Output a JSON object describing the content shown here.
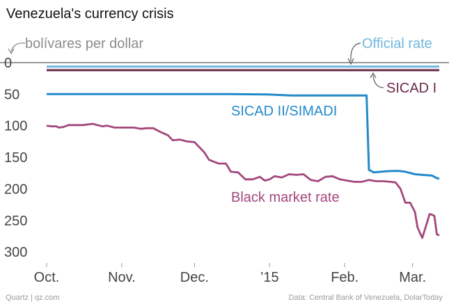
{
  "header": {
    "title": "Venezuela's currency crisis",
    "source_left": "Quartz | qz.com",
    "source_right": "Data: Central Bank of Venezuela, DolarToday"
  },
  "chart_data": {
    "type": "line",
    "title": "Venezuela's currency crisis",
    "ylabel": "bolívares per dollar",
    "y_inverted": true,
    "ylim": [
      0,
      300
    ],
    "yticks": [
      0,
      50,
      100,
      150,
      200,
      250,
      300
    ],
    "x_date_range": [
      "2014-10-01",
      "2015-03-12"
    ],
    "xticks": [
      {
        "label": "Oct.",
        "date": "2014-10-01"
      },
      {
        "label": "Nov.",
        "date": "2014-11-01"
      },
      {
        "label": "Dec.",
        "date": "2014-12-01"
      },
      {
        "label": "’15",
        "date": "2015-01-01"
      },
      {
        "label": "Feb.",
        "date": "2015-02-01"
      },
      {
        "label": "Mar.",
        "date": "2015-03-01"
      }
    ],
    "colors": {
      "official": "#6fb6dd",
      "sicad1": "#6b2a4a",
      "sicad2": "#2389c9",
      "black": "#a3477c",
      "axis_text": "#444444",
      "annotation_gray": "#8c8c8c"
    },
    "series": [
      {
        "name": "Official rate",
        "points": [
          [
            "2014-10-01",
            6.3
          ],
          [
            "2015-03-12",
            6.3
          ]
        ]
      },
      {
        "name": "SICAD I",
        "points": [
          [
            "2014-10-01",
            12
          ],
          [
            "2015-03-12",
            12
          ]
        ]
      },
      {
        "name": "SICAD II/SIMADI",
        "points": [
          [
            "2014-10-01",
            50
          ],
          [
            "2014-12-15",
            50
          ],
          [
            "2014-12-31",
            50.5
          ],
          [
            "2015-01-10",
            52
          ],
          [
            "2015-02-10",
            52
          ],
          [
            "2015-02-11",
            170
          ],
          [
            "2015-02-13",
            174
          ],
          [
            "2015-02-16",
            173
          ],
          [
            "2015-02-19",
            172
          ],
          [
            "2015-02-23",
            171.5
          ],
          [
            "2015-02-26",
            173
          ],
          [
            "2015-03-02",
            177
          ],
          [
            "2015-03-05",
            178
          ],
          [
            "2015-03-09",
            179
          ],
          [
            "2015-03-11",
            183
          ],
          [
            "2015-03-12",
            184
          ]
        ]
      },
      {
        "name": "Black market rate",
        "points": [
          [
            "2014-10-01",
            100
          ],
          [
            "2014-10-03",
            101
          ],
          [
            "2014-10-05",
            101
          ],
          [
            "2014-10-06",
            103
          ],
          [
            "2014-10-08",
            102
          ],
          [
            "2014-10-10",
            99
          ],
          [
            "2014-10-13",
            99
          ],
          [
            "2014-10-16",
            99
          ],
          [
            "2014-10-18",
            98
          ],
          [
            "2014-10-20",
            97
          ],
          [
            "2014-10-22",
            99
          ],
          [
            "2014-10-24",
            101
          ],
          [
            "2014-10-26",
            100
          ],
          [
            "2014-10-29",
            103
          ],
          [
            "2014-10-31",
            103
          ],
          [
            "2014-11-03",
            103
          ],
          [
            "2014-11-06",
            103
          ],
          [
            "2014-11-09",
            105
          ],
          [
            "2014-11-11",
            104
          ],
          [
            "2014-11-14",
            104
          ],
          [
            "2014-11-17",
            110
          ],
          [
            "2014-11-20",
            115
          ],
          [
            "2014-11-22",
            123
          ],
          [
            "2014-11-25",
            122
          ],
          [
            "2014-11-28",
            125
          ],
          [
            "2014-12-01",
            126
          ],
          [
            "2014-12-03",
            134
          ],
          [
            "2014-12-05",
            142
          ],
          [
            "2014-12-07",
            154
          ],
          [
            "2014-12-09",
            157
          ],
          [
            "2014-12-11",
            160
          ],
          [
            "2014-12-14",
            160
          ],
          [
            "2014-12-16",
            173
          ],
          [
            "2014-12-19",
            174
          ],
          [
            "2014-12-22",
            185
          ],
          [
            "2014-12-25",
            185
          ],
          [
            "2014-12-28",
            181
          ],
          [
            "2014-12-30",
            187
          ],
          [
            "2015-01-01",
            185
          ],
          [
            "2015-01-03",
            180
          ],
          [
            "2015-01-06",
            182
          ],
          [
            "2015-01-09",
            177
          ],
          [
            "2015-01-12",
            178
          ],
          [
            "2015-01-15",
            177
          ],
          [
            "2015-01-18",
            186
          ],
          [
            "2015-01-21",
            188
          ],
          [
            "2015-01-24",
            181
          ],
          [
            "2015-01-27",
            180
          ],
          [
            "2015-01-30",
            185
          ],
          [
            "2015-02-02",
            187
          ],
          [
            "2015-02-05",
            189
          ],
          [
            "2015-02-08",
            189
          ],
          [
            "2015-02-11",
            186
          ],
          [
            "2015-02-14",
            188
          ],
          [
            "2015-02-17",
            188
          ],
          [
            "2015-02-20",
            189
          ],
          [
            "2015-02-22",
            190
          ],
          [
            "2015-02-24",
            200
          ],
          [
            "2015-02-26",
            222
          ],
          [
            "2015-02-28",
            222
          ],
          [
            "2015-03-02",
            237
          ],
          [
            "2015-03-03",
            261
          ],
          [
            "2015-03-05",
            278
          ],
          [
            "2015-03-07",
            253
          ],
          [
            "2015-03-08",
            240
          ],
          [
            "2015-03-09",
            241
          ],
          [
            "2015-03-10",
            243
          ],
          [
            "2015-03-11",
            272
          ],
          [
            "2015-03-12",
            274
          ]
        ]
      }
    ],
    "annotations": {
      "ylabel": "bolívares per dollar",
      "official": "Official rate",
      "sicad1": "SICAD I",
      "sicad2": "SICAD II/SIMADI",
      "black": "Black market rate"
    },
    "grid": false,
    "legend": "inline labels"
  }
}
